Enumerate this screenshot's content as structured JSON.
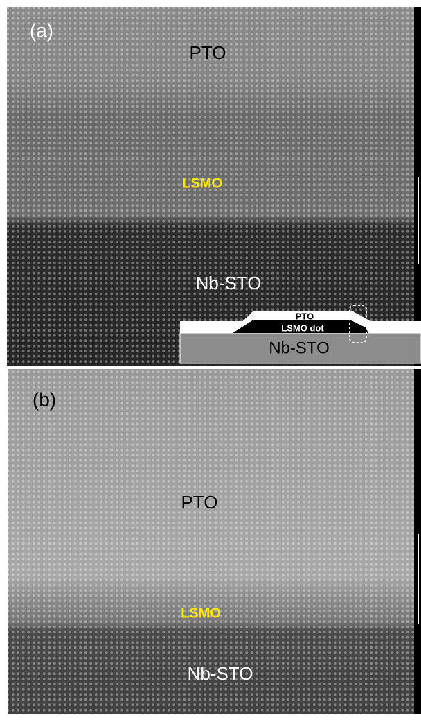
{
  "panels": [
    {
      "label": "(a)",
      "layers": [
        "PTO",
        "LSMO",
        "Nb-STO"
      ],
      "inset": {
        "top": "PTO",
        "dot": "LSMO dot",
        "substrate": "Nb-STO"
      }
    },
    {
      "label": "(b)",
      "layers": [
        "PTO",
        "LSMO",
        "Nb-STO"
      ]
    }
  ]
}
